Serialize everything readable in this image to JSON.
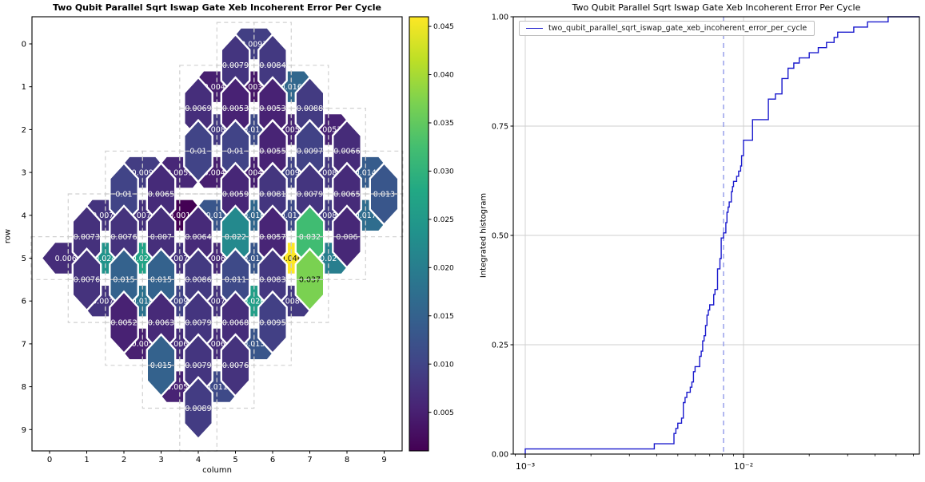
{
  "figure": {
    "left_title": "Two Qubit Parallel Sqrt Iswap Gate Xeb Incoherent Error Per Cycle",
    "right_title": "Two Qubit Parallel Sqrt Iswap Gate Xeb Incoherent Error Per Cycle"
  },
  "chart_data": [
    {
      "type": "heatmap",
      "subtype": "two_qubit_interaction_grid",
      "title": "Two Qubit Parallel Sqrt Iswap Gate Xeb Incoherent Error Per Cycle",
      "xlabel": "column",
      "ylabel": "row",
      "x_ticks": [
        "0",
        "1",
        "2",
        "3",
        "4",
        "5",
        "6",
        "7",
        "8",
        "9"
      ],
      "y_ticks": [
        "0",
        "1",
        "2",
        "3",
        "4",
        "5",
        "6",
        "7",
        "8",
        "9"
      ],
      "colormap": "viridis",
      "vmin": 0.001,
      "vmax": 0.046,
      "colorbar_ticks": [
        "0.005",
        "0.010",
        "0.015",
        "0.020",
        "0.025",
        "0.030",
        "0.035",
        "0.040",
        "0.045"
      ],
      "grid": "dashed unit squares around each qubit",
      "pairs_format": "[row1,col1,row2,col2,value]",
      "pairs": [
        [
          0,
          5,
          0,
          6,
          "0.0093"
        ],
        [
          1,
          4,
          1,
          5,
          "0.0048"
        ],
        [
          1,
          5,
          1,
          6,
          "0.0039"
        ],
        [
          1,
          6,
          1,
          7,
          "0.016"
        ],
        [
          2,
          4,
          2,
          5,
          "0.0085"
        ],
        [
          2,
          5,
          2,
          6,
          "0.011"
        ],
        [
          2,
          6,
          2,
          7,
          "0.0058"
        ],
        [
          2,
          7,
          2,
          8,
          "0.0053"
        ],
        [
          3,
          2,
          3,
          3,
          "0.009"
        ],
        [
          3,
          3,
          3,
          4,
          "0.0059"
        ],
        [
          3,
          4,
          3,
          5,
          "0.0048"
        ],
        [
          3,
          5,
          3,
          6,
          "0.0049"
        ],
        [
          3,
          6,
          3,
          7,
          "0.0098"
        ],
        [
          3,
          7,
          3,
          8,
          "0.0083"
        ],
        [
          3,
          8,
          3,
          9,
          "0.014"
        ],
        [
          4,
          1,
          4,
          2,
          "0.0078"
        ],
        [
          4,
          2,
          4,
          3,
          "0.0073"
        ],
        [
          4,
          3,
          4,
          4,
          "0.001"
        ],
        [
          4,
          4,
          4,
          5,
          "0.013"
        ],
        [
          4,
          5,
          4,
          6,
          "0.016"
        ],
        [
          4,
          6,
          4,
          7,
          "0.011"
        ],
        [
          4,
          7,
          4,
          8,
          "0.0088"
        ],
        [
          4,
          8,
          4,
          9,
          "0.017"
        ],
        [
          5,
          0,
          5,
          1,
          "0.0067"
        ],
        [
          5,
          1,
          5,
          2,
          "0.024"
        ],
        [
          5,
          2,
          5,
          3,
          "0.027"
        ],
        [
          5,
          3,
          5,
          4,
          "0.0074"
        ],
        [
          5,
          4,
          5,
          5,
          "0.0063"
        ],
        [
          5,
          5,
          5,
          6,
          "0.013"
        ],
        [
          5,
          6,
          5,
          7,
          "0.046"
        ],
        [
          5,
          7,
          5,
          8,
          "0.02"
        ],
        [
          6,
          1,
          6,
          2,
          "0.0078"
        ],
        [
          6,
          2,
          6,
          3,
          "0.018"
        ],
        [
          6,
          3,
          6,
          4,
          "0.0098"
        ],
        [
          6,
          4,
          6,
          5,
          "0.0076"
        ],
        [
          6,
          5,
          6,
          6,
          "0.026"
        ],
        [
          6,
          6,
          6,
          7,
          "0.0084"
        ],
        [
          7,
          2,
          7,
          3,
          "0.005"
        ],
        [
          7,
          3,
          7,
          4,
          "0.0067"
        ],
        [
          7,
          4,
          7,
          5,
          "0.0068"
        ],
        [
          7,
          5,
          7,
          6,
          "0.013"
        ],
        [
          8,
          3,
          8,
          4,
          "0.0054"
        ],
        [
          8,
          4,
          8,
          5,
          "0.011"
        ],
        [
          0,
          5,
          1,
          5,
          "0.0079"
        ],
        [
          0,
          6,
          1,
          6,
          "0.0084"
        ],
        [
          1,
          4,
          2,
          4,
          "0.0069"
        ],
        [
          1,
          5,
          2,
          5,
          "0.0053"
        ],
        [
          1,
          6,
          2,
          6,
          "0.0053"
        ],
        [
          1,
          7,
          2,
          7,
          "0.0088"
        ],
        [
          2,
          4,
          3,
          4,
          "0.01"
        ],
        [
          2,
          5,
          3,
          5,
          "0.01"
        ],
        [
          2,
          6,
          3,
          6,
          "0.0055"
        ],
        [
          2,
          7,
          3,
          7,
          "0.0097"
        ],
        [
          2,
          8,
          3,
          8,
          "0.0066"
        ],
        [
          3,
          2,
          4,
          2,
          "0.01"
        ],
        [
          3,
          3,
          4,
          3,
          "0.0065"
        ],
        [
          3,
          5,
          4,
          5,
          "0.0059"
        ],
        [
          3,
          6,
          4,
          6,
          "0.0081"
        ],
        [
          3,
          7,
          4,
          7,
          "0.0079"
        ],
        [
          3,
          8,
          4,
          8,
          "0.0065"
        ],
        [
          3,
          9,
          4,
          9,
          "0.013"
        ],
        [
          4,
          1,
          5,
          1,
          "0.0073"
        ],
        [
          4,
          2,
          5,
          2,
          "0.0076"
        ],
        [
          4,
          3,
          5,
          3,
          "0.007"
        ],
        [
          4,
          4,
          5,
          4,
          "0.0064"
        ],
        [
          4,
          5,
          5,
          5,
          "0.022"
        ],
        [
          4,
          6,
          5,
          6,
          "0.0057"
        ],
        [
          4,
          7,
          5,
          7,
          "0.032"
        ],
        [
          4,
          8,
          5,
          8,
          "0.006"
        ],
        [
          5,
          1,
          6,
          1,
          "0.0076"
        ],
        [
          5,
          2,
          6,
          2,
          "0.015"
        ],
        [
          5,
          3,
          6,
          3,
          "0.015"
        ],
        [
          5,
          4,
          6,
          4,
          "0.0086"
        ],
        [
          5,
          5,
          6,
          5,
          "0.011"
        ],
        [
          5,
          6,
          6,
          6,
          "0.0083"
        ],
        [
          5,
          7,
          6,
          7,
          "0.037"
        ],
        [
          6,
          2,
          7,
          2,
          "0.0052"
        ],
        [
          6,
          3,
          7,
          3,
          "0.0063"
        ],
        [
          6,
          4,
          7,
          4,
          "0.0079"
        ],
        [
          6,
          5,
          7,
          5,
          "0.0068"
        ],
        [
          6,
          6,
          7,
          6,
          "0.0095"
        ],
        [
          7,
          3,
          8,
          3,
          "0.015"
        ],
        [
          7,
          4,
          8,
          4,
          "0.0079"
        ],
        [
          7,
          5,
          8,
          5,
          "0.0076"
        ],
        [
          8,
          4,
          9,
          4,
          "0.0089"
        ]
      ]
    },
    {
      "type": "line",
      "subtype": "integrated_histogram_cdf",
      "title": "Two Qubit Parallel Sqrt Iswap Gate Xeb Incoherent Error Per Cycle",
      "ylabel": "Integrated histogram",
      "legend": [
        "two_qubit_parallel_sqrt_iswap_gate_xeb_incoherent_error_per_cycle"
      ],
      "legend_position": "upper left",
      "x_scale": "log",
      "x_tick_values": [
        0.001,
        0.01
      ],
      "x_tick_labels": [
        "10⁻³",
        "10⁻²"
      ],
      "y_tick_labels": [
        "0.00",
        "0.25",
        "0.50",
        "0.75",
        "1.00"
      ],
      "y_tick_values": [
        0,
        0.25,
        0.5,
        0.75,
        1.0
      ],
      "xlim": [
        0.00088,
        0.066
      ],
      "ylim": [
        0,
        1
      ],
      "grid": true,
      "median_dashed_line": 0.0081,
      "line_color": "#1a1acd",
      "median_line_color": "#98a0ea",
      "values": [
        0.001,
        0.0039,
        0.0048,
        0.0048,
        0.0049,
        0.005,
        0.0052,
        0.0053,
        0.0053,
        0.0053,
        0.0054,
        0.0055,
        0.0057,
        0.0058,
        0.0059,
        0.0059,
        0.006,
        0.0063,
        0.0063,
        0.0064,
        0.0065,
        0.0065,
        0.0066,
        0.0067,
        0.0067,
        0.0068,
        0.0068,
        0.0069,
        0.007,
        0.0073,
        0.0073,
        0.0074,
        0.0076,
        0.0076,
        0.0076,
        0.0076,
        0.0078,
        0.0078,
        0.0079,
        0.0079,
        0.0079,
        0.0079,
        0.0081,
        0.0083,
        0.0083,
        0.0084,
        0.0084,
        0.0085,
        0.0086,
        0.0088,
        0.0088,
        0.0089,
        0.009,
        0.0093,
        0.0095,
        0.0097,
        0.0098,
        0.0098,
        0.01,
        0.01,
        0.01,
        0.011,
        0.011,
        0.011,
        0.011,
        0.013,
        0.013,
        0.013,
        0.013,
        0.014,
        0.015,
        0.015,
        0.015,
        0.016,
        0.016,
        0.017,
        0.018,
        0.02,
        0.022,
        0.024,
        0.026,
        0.027,
        0.032,
        0.037,
        0.046
      ]
    }
  ]
}
